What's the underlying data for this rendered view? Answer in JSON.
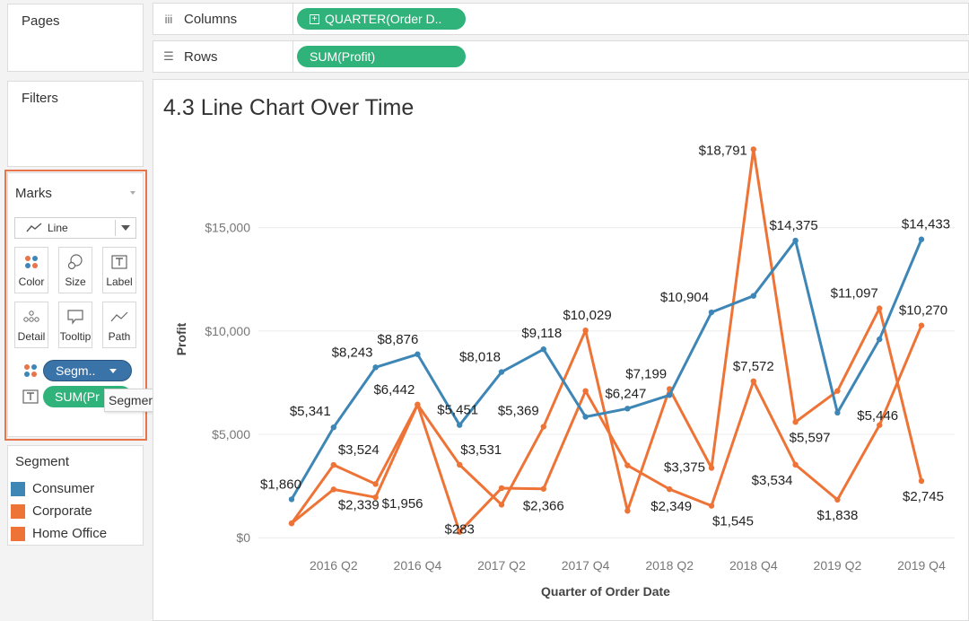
{
  "sidebar": {
    "pages_title": "Pages",
    "filters_title": "Filters",
    "marks": {
      "title": "Marks",
      "mark_type": "Line",
      "buttons": [
        "Color",
        "Size",
        "Label",
        "Detail",
        "Tooltip",
        "Path"
      ],
      "fields": [
        {
          "label": "Segm..",
          "icon": "color-dots-icon",
          "color": "#3a73a8"
        },
        {
          "label": "SUM(Pr",
          "icon": "text-icon",
          "color": "#2fb37a"
        }
      ],
      "tooltip": "Segment"
    },
    "legend": {
      "title": "Segment",
      "items": [
        {
          "label": "Consumer",
          "color": "#3d86b5"
        },
        {
          "label": "Corporate",
          "color": "#ee7336"
        },
        {
          "label": "Home Office",
          "color": "#ee7336"
        }
      ]
    }
  },
  "shelves": {
    "columns_label": "Columns",
    "columns_pill": "QUARTER(Order D..",
    "rows_label": "Rows",
    "rows_pill": "SUM(Profit)"
  },
  "colors": {
    "pill_green": "#2fb37a",
    "consumer": "#3d86b5",
    "corporate": "#ee7336",
    "home_office": "#ee7336",
    "marks_outline": "#e8744a"
  },
  "chart_data": {
    "type": "line",
    "title": "4.3 Line Chart Over Time",
    "xlabel": "Quarter of Order Date",
    "ylabel": "Profit",
    "x": [
      "2016 Q1",
      "2016 Q2",
      "2016 Q3",
      "2016 Q4",
      "2017 Q1",
      "2017 Q2",
      "2017 Q3",
      "2017 Q4",
      "2018 Q1",
      "2018 Q2",
      "2018 Q3",
      "2018 Q4",
      "2019 Q1",
      "2019 Q2",
      "2019 Q3",
      "2019 Q4"
    ],
    "x_ticks": [
      "2016 Q2",
      "2016 Q4",
      "2017 Q2",
      "2017 Q4",
      "2018 Q2",
      "2018 Q4",
      "2019 Q2",
      "2019 Q4"
    ],
    "y_ticks": [
      0,
      5000,
      10000,
      15000
    ],
    "y_tick_labels": [
      "$0",
      "$5,000",
      "$10,000",
      "$15,000"
    ],
    "ylim": [
      -250,
      19500
    ],
    "grid": true,
    "series": [
      {
        "name": "Consumer",
        "color": "#3d86b5",
        "values": [
          1860,
          5341,
          8243,
          8876,
          5451,
          8018,
          9118,
          5850,
          6247,
          6900,
          10904,
          11700,
          14375,
          6050,
          9600,
          14433
        ]
      },
      {
        "name": "Corporate",
        "color": "#ee7336",
        "values": [
          700,
          3524,
          2600,
          6442,
          3531,
          1600,
          5369,
          10029,
          1300,
          7199,
          3375,
          18791,
          5597,
          7100,
          11097,
          2745
        ]
      },
      {
        "name": "Home Office",
        "color": "#ee7336",
        "values": [
          700,
          2339,
          1956,
          6442,
          283,
          2400,
          2366,
          7100,
          3500,
          2349,
          1545,
          7572,
          3534,
          1838,
          5446,
          10270
        ]
      }
    ],
    "labels": [
      {
        "series": 0,
        "index": 0,
        "text": "$1,860",
        "dx": -12,
        "dy": -12
      },
      {
        "series": 0,
        "index": 1,
        "text": "$5,341",
        "dx": -26,
        "dy": -13
      },
      {
        "series": 0,
        "index": 2,
        "text": "$8,243",
        "dx": -26,
        "dy": -12
      },
      {
        "series": 0,
        "index": 3,
        "text": "$8,876",
        "dx": -22,
        "dy": -12
      },
      {
        "series": 0,
        "index": 4,
        "text": "$5,451",
        "dx": -2,
        "dy": -12
      },
      {
        "series": 0,
        "index": 5,
        "text": "$8,018",
        "dx": -24,
        "dy": -12
      },
      {
        "series": 0,
        "index": 6,
        "text": "$9,118",
        "dx": -2,
        "dy": -13
      },
      {
        "series": 0,
        "index": 8,
        "text": "$6,247",
        "dx": -2,
        "dy": -12
      },
      {
        "series": 0,
        "index": 10,
        "text": "$10,904",
        "dx": -30,
        "dy": -12
      },
      {
        "series": 0,
        "index": 12,
        "text": "$14,375",
        "dx": -2,
        "dy": -12
      },
      {
        "series": 0,
        "index": 15,
        "text": "$14,433",
        "dx": 5,
        "dy": -12
      },
      {
        "series": 1,
        "index": 1,
        "text": "$3,524",
        "dx": 28,
        "dy": -12
      },
      {
        "series": 1,
        "index": 3,
        "text": "$6,442",
        "dx": -26,
        "dy": -12
      },
      {
        "series": 1,
        "index": 4,
        "text": "$3,531",
        "dx": 24,
        "dy": -12
      },
      {
        "series": 1,
        "index": 6,
        "text": "$5,369",
        "dx": -28,
        "dy": -13
      },
      {
        "series": 1,
        "index": 7,
        "text": "$10,029",
        "dx": 2,
        "dy": -12
      },
      {
        "series": 1,
        "index": 9,
        "text": "$7,199",
        "dx": -26,
        "dy": -12
      },
      {
        "series": 1,
        "index": 10,
        "text": "$3,375",
        "dx": -30,
        "dy": 4
      },
      {
        "series": 1,
        "index": 11,
        "text": "$18,791",
        "dx": -34,
        "dy": 6
      },
      {
        "series": 1,
        "index": 12,
        "text": "$5,597",
        "dx": 16,
        "dy": 22
      },
      {
        "series": 1,
        "index": 14,
        "text": "$11,097",
        "dx": -28,
        "dy": -12
      },
      {
        "series": 1,
        "index": 15,
        "text": "$2,745",
        "dx": 2,
        "dy": 22
      },
      {
        "series": 2,
        "index": 1,
        "text": "$2,339",
        "dx": 28,
        "dy": 22
      },
      {
        "series": 2,
        "index": 2,
        "text": "$1,956",
        "dx": 30,
        "dy": 12
      },
      {
        "series": 2,
        "index": 4,
        "text": "$283",
        "dx": 0,
        "dy": 2
      },
      {
        "series": 2,
        "index": 6,
        "text": "$2,366",
        "dx": 0,
        "dy": 24
      },
      {
        "series": 2,
        "index": 9,
        "text": "$2,349",
        "dx": 2,
        "dy": 24
      },
      {
        "series": 2,
        "index": 10,
        "text": "$1,545",
        "dx": 24,
        "dy": 22
      },
      {
        "series": 2,
        "index": 11,
        "text": "$7,572",
        "dx": 0,
        "dy": -12
      },
      {
        "series": 2,
        "index": 12,
        "text": "$3,534",
        "dx": -26,
        "dy": 22
      },
      {
        "series": 2,
        "index": 13,
        "text": "$1,838",
        "dx": 0,
        "dy": 22
      },
      {
        "series": 2,
        "index": 14,
        "text": "$5,446",
        "dx": -2,
        "dy": -6
      },
      {
        "series": 2,
        "index": 15,
        "text": "$10,270",
        "dx": 2,
        "dy": -12
      }
    ]
  }
}
